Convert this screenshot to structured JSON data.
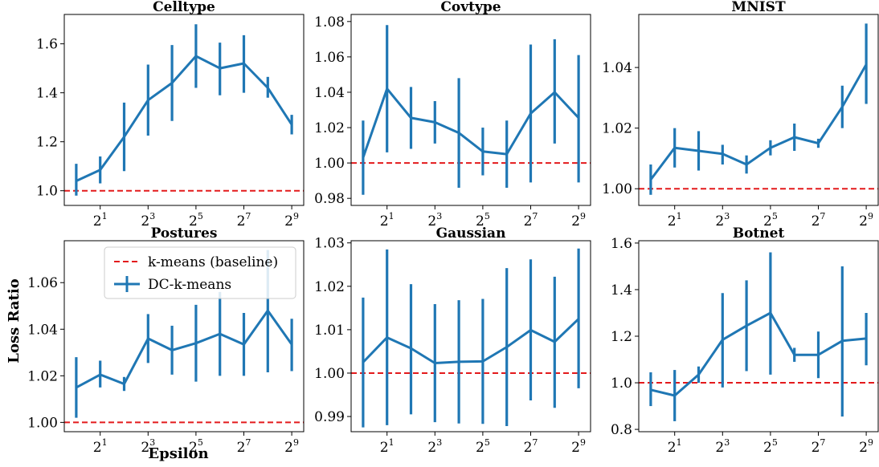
{
  "figure": {
    "xlabel": "Epsilon",
    "ylabel": "Loss Ratio"
  },
  "legend": {
    "baseline_label": "k-means (baseline)",
    "series_label": "DC-k-means",
    "placement": "top-right of Postures panel"
  },
  "colors": {
    "series": "#1f77b4",
    "baseline": "#e31a1c"
  },
  "chart_data": [
    {
      "type": "line",
      "title": "Celltype",
      "x": [
        1,
        2,
        4,
        8,
        16,
        32,
        64,
        128,
        256,
        512
      ],
      "xticks": [
        2,
        8,
        32,
        128,
        512
      ],
      "xtick_labels": [
        {
          "base": "2",
          "exp": "1"
        },
        {
          "base": "2",
          "exp": "3"
        },
        {
          "base": "2",
          "exp": "5"
        },
        {
          "base": "2",
          "exp": "7"
        },
        {
          "base": "2",
          "exp": "9"
        }
      ],
      "ylim": [
        0.94,
        1.72
      ],
      "yticks": [
        1.0,
        1.2,
        1.4,
        1.6
      ],
      "ytick_labels": [
        "1.0",
        "1.2",
        "1.4",
        "1.6"
      ],
      "baseline": 1.0,
      "series": [
        {
          "name": "DC-k-means",
          "values": [
            1.04,
            1.085,
            1.22,
            1.37,
            1.44,
            1.55,
            1.5,
            1.52,
            1.42,
            1.27
          ],
          "err_low": [
            0.98,
            1.03,
            1.08,
            1.225,
            1.285,
            1.42,
            1.39,
            1.4,
            1.38,
            1.23
          ],
          "err_high": [
            1.11,
            1.14,
            1.36,
            1.515,
            1.595,
            1.68,
            1.605,
            1.635,
            1.465,
            1.31
          ]
        }
      ]
    },
    {
      "type": "line",
      "title": "Covtype",
      "x": [
        1,
        2,
        4,
        8,
        16,
        32,
        64,
        128,
        256,
        512
      ],
      "xticks": [
        2,
        8,
        32,
        128,
        512
      ],
      "xtick_labels": [
        {
          "base": "2",
          "exp": "1"
        },
        {
          "base": "2",
          "exp": "3"
        },
        {
          "base": "2",
          "exp": "5"
        },
        {
          "base": "2",
          "exp": "7"
        },
        {
          "base": "2",
          "exp": "9"
        }
      ],
      "ylim": [
        0.976,
        1.084
      ],
      "yticks": [
        0.98,
        1.0,
        1.02,
        1.04,
        1.06,
        1.08
      ],
      "ytick_labels": [
        "0.98",
        "1.00",
        "1.02",
        "1.04",
        "1.06",
        "1.08"
      ],
      "baseline": 1.0,
      "series": [
        {
          "name": "DC-k-means",
          "values": [
            1.003,
            1.042,
            1.0255,
            1.023,
            1.017,
            1.0065,
            1.005,
            1.028,
            1.04,
            1.0255
          ],
          "err_low": [
            0.982,
            1.006,
            1.008,
            1.011,
            0.986,
            0.993,
            0.986,
            0.989,
            1.011,
            0.989
          ],
          "err_high": [
            1.024,
            1.078,
            1.043,
            1.035,
            1.048,
            1.02,
            1.024,
            1.067,
            1.07,
            1.061
          ]
        }
      ]
    },
    {
      "type": "line",
      "title": "MNIST",
      "x": [
        1,
        2,
        4,
        8,
        16,
        32,
        64,
        128,
        256,
        512
      ],
      "xticks": [
        2,
        8,
        32,
        128,
        512
      ],
      "xtick_labels": [
        {
          "base": "2",
          "exp": "1"
        },
        {
          "base": "2",
          "exp": "3"
        },
        {
          "base": "2",
          "exp": "5"
        },
        {
          "base": "2",
          "exp": "7"
        },
        {
          "base": "2",
          "exp": "9"
        }
      ],
      "ylim": [
        0.9945,
        1.0575
      ],
      "yticks": [
        1.0,
        1.02,
        1.04
      ],
      "ytick_labels": [
        "1.00",
        "1.02",
        "1.04"
      ],
      "baseline": 1.0,
      "series": [
        {
          "name": "DC-k-means",
          "values": [
            1.003,
            1.0135,
            1.0125,
            1.0115,
            1.008,
            1.0135,
            1.017,
            1.015,
            1.027,
            1.041
          ],
          "err_low": [
            0.998,
            1.007,
            1.006,
            1.008,
            1.005,
            1.011,
            1.0125,
            1.0135,
            1.02,
            1.028
          ],
          "err_high": [
            1.008,
            1.02,
            1.019,
            1.0145,
            1.011,
            1.016,
            1.0215,
            1.0165,
            1.034,
            1.0545
          ]
        }
      ]
    },
    {
      "type": "line",
      "title": "Postures",
      "x": [
        1,
        2,
        4,
        8,
        16,
        32,
        64,
        128,
        256,
        512
      ],
      "xticks": [
        2,
        8,
        32,
        128,
        512
      ],
      "xtick_labels": [
        {
          "base": "2",
          "exp": "1"
        },
        {
          "base": "2",
          "exp": "3"
        },
        {
          "base": "2",
          "exp": "5"
        },
        {
          "base": "2",
          "exp": "7"
        },
        {
          "base": "2",
          "exp": "9"
        }
      ],
      "ylim": [
        0.996,
        1.078
      ],
      "yticks": [
        1.0,
        1.02,
        1.04,
        1.06
      ],
      "ytick_labels": [
        "1.00",
        "1.02",
        "1.04",
        "1.06"
      ],
      "baseline": 1.0,
      "series": [
        {
          "name": "DC-k-means",
          "values": [
            1.015,
            1.0205,
            1.0165,
            1.036,
            1.031,
            1.034,
            1.038,
            1.0335,
            1.048,
            1.0335
          ],
          "err_low": [
            1.002,
            1.015,
            1.0135,
            1.0255,
            1.0205,
            1.0175,
            1.02,
            1.02,
            1.0215,
            1.022
          ],
          "err_high": [
            1.028,
            1.0265,
            1.0195,
            1.0465,
            1.0415,
            1.0505,
            1.056,
            1.047,
            1.074,
            1.0445
          ]
        }
      ]
    },
    {
      "type": "line",
      "title": "Gaussian",
      "x": [
        1,
        2,
        4,
        8,
        16,
        32,
        64,
        128,
        256,
        512
      ],
      "xticks": [
        2,
        8,
        32,
        128,
        512
      ],
      "xtick_labels": [
        {
          "base": "2",
          "exp": "1"
        },
        {
          "base": "2",
          "exp": "3"
        },
        {
          "base": "2",
          "exp": "5"
        },
        {
          "base": "2",
          "exp": "7"
        },
        {
          "base": "2",
          "exp": "9"
        }
      ],
      "ylim": [
        0.9865,
        1.0305
      ],
      "yticks": [
        0.99,
        1.0,
        1.01,
        1.02,
        1.03
      ],
      "ytick_labels": [
        "0.99",
        "1.00",
        "1.01",
        "1.02",
        "1.03"
      ],
      "baseline": 1.0,
      "series": [
        {
          "name": "DC-k-means",
          "values": [
            1.0025,
            1.0082,
            1.0057,
            1.0023,
            1.0026,
            1.0027,
            1.006,
            1.0099,
            1.0072,
            1.0125
          ],
          "err_low": [
            0.9875,
            0.988,
            0.9905,
            0.9887,
            0.9884,
            0.9883,
            0.9878,
            0.9937,
            0.992,
            0.9965
          ],
          "err_high": [
            1.0174,
            1.0285,
            1.0205,
            1.0159,
            1.0168,
            1.0171,
            1.0242,
            1.0262,
            1.0222,
            1.0287
          ]
        }
      ]
    },
    {
      "type": "line",
      "title": "Botnet",
      "x": [
        1,
        2,
        4,
        8,
        16,
        32,
        64,
        128,
        256,
        512
      ],
      "xticks": [
        2,
        8,
        32,
        128,
        512
      ],
      "xtick_labels": [
        {
          "base": "2",
          "exp": "1"
        },
        {
          "base": "2",
          "exp": "3"
        },
        {
          "base": "2",
          "exp": "5"
        },
        {
          "base": "2",
          "exp": "7"
        },
        {
          "base": "2",
          "exp": "9"
        }
      ],
      "ylim": [
        0.79,
        1.61
      ],
      "yticks": [
        0.8,
        1.0,
        1.2,
        1.4,
        1.6
      ],
      "ytick_labels": [
        "0.8",
        "1.0",
        "1.2",
        "1.4",
        "1.6"
      ],
      "baseline": 1.0,
      "series": [
        {
          "name": "DC-k-means",
          "values": [
            0.97,
            0.945,
            1.035,
            1.185,
            1.245,
            1.3,
            1.12,
            1.12,
            1.18,
            1.19
          ],
          "err_low": [
            0.9,
            0.835,
            1.0,
            0.98,
            1.05,
            1.035,
            1.09,
            1.02,
            0.855,
            1.075
          ],
          "err_high": [
            1.045,
            1.055,
            1.07,
            1.385,
            1.44,
            1.56,
            1.15,
            1.22,
            1.5,
            1.3
          ]
        }
      ]
    }
  ]
}
